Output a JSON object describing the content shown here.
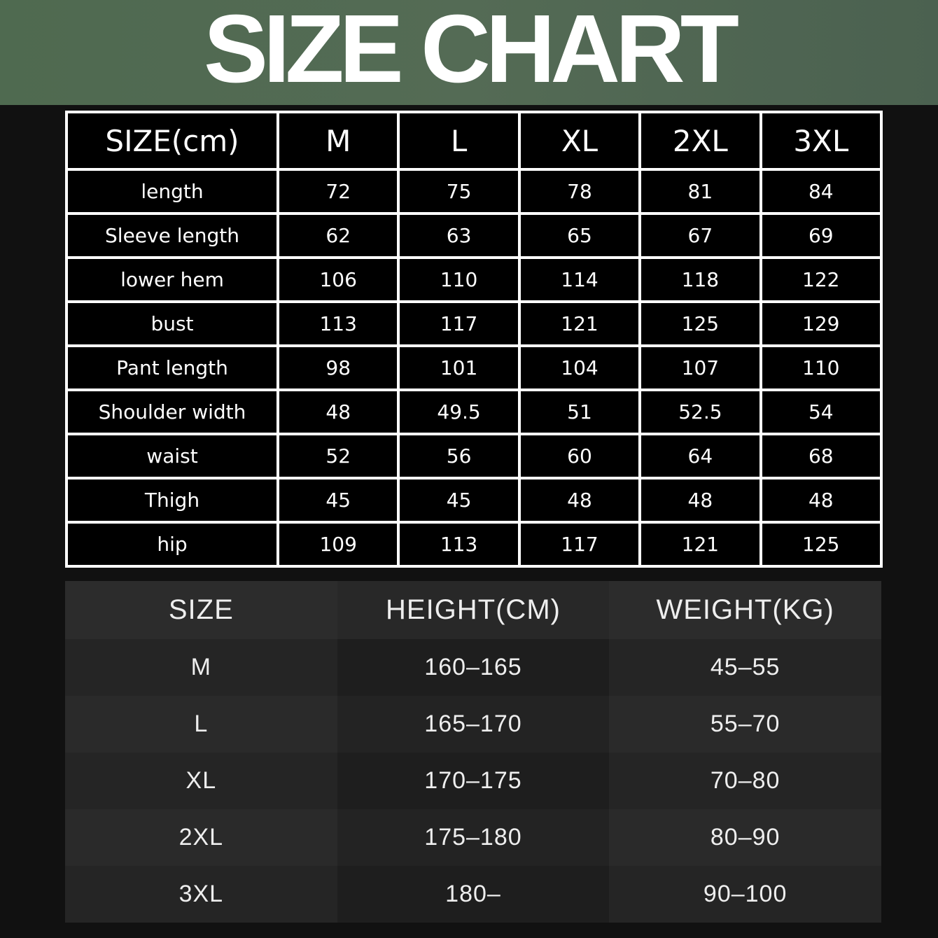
{
  "title": "SIZE CHART",
  "colors": {
    "header_bg": "#516a52",
    "table_bg": "#000000",
    "border": "#ffffff"
  },
  "measure_table": {
    "headers": [
      "SIZE(cm)",
      "M",
      "L",
      "XL",
      "2XL",
      "3XL"
    ],
    "rows": [
      [
        "length",
        "72",
        "75",
        "78",
        "81",
        "84"
      ],
      [
        "Sleeve length",
        "62",
        "63",
        "65",
        "67",
        "69"
      ],
      [
        "lower hem",
        "106",
        "110",
        "114",
        "118",
        "122"
      ],
      [
        "bust",
        "113",
        "117",
        "121",
        "125",
        "129"
      ],
      [
        "Pant length",
        "98",
        "101",
        "104",
        "107",
        "110"
      ],
      [
        "Shoulder width",
        "48",
        "49.5",
        "51",
        "52.5",
        "54"
      ],
      [
        "waist",
        "52",
        "56",
        "60",
        "64",
        "68"
      ],
      [
        "Thigh",
        "45",
        "45",
        "48",
        "48",
        "48"
      ],
      [
        "hip",
        "109",
        "113",
        "117",
        "121",
        "125"
      ]
    ]
  },
  "fit_table": {
    "headers": [
      "SIZE",
      "HEIGHT(CM)",
      "WEIGHT(KG)"
    ],
    "rows": [
      [
        "M",
        "160–165",
        "45–55"
      ],
      [
        "L",
        "165–170",
        "55–70"
      ],
      [
        "XL",
        "170–175",
        "70–80"
      ],
      [
        "2XL",
        "175–180",
        "80–90"
      ],
      [
        "3XL",
        "180–",
        "90–100"
      ]
    ]
  }
}
